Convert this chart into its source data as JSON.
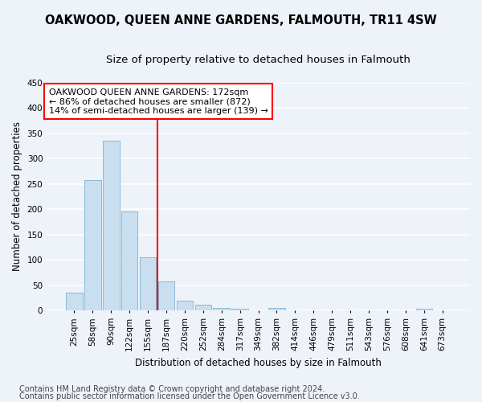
{
  "title": "OAKWOOD, QUEEN ANNE GARDENS, FALMOUTH, TR11 4SW",
  "subtitle": "Size of property relative to detached houses in Falmouth",
  "xlabel": "Distribution of detached houses by size in Falmouth",
  "ylabel": "Number of detached properties",
  "categories": [
    "25sqm",
    "58sqm",
    "90sqm",
    "122sqm",
    "155sqm",
    "187sqm",
    "220sqm",
    "252sqm",
    "284sqm",
    "317sqm",
    "349sqm",
    "382sqm",
    "414sqm",
    "446sqm",
    "479sqm",
    "511sqm",
    "543sqm",
    "576sqm",
    "608sqm",
    "641sqm",
    "673sqm"
  ],
  "values": [
    35,
    258,
    335,
    195,
    105,
    57,
    20,
    11,
    6,
    4,
    0,
    5,
    0,
    0,
    0,
    0,
    0,
    0,
    0,
    4,
    0
  ],
  "bar_color": "#c9dff0",
  "bar_edge_color": "#7ab3d4",
  "vline_pos": 4.5,
  "annotation_lines": [
    "OAKWOOD QUEEN ANNE GARDENS: 172sqm",
    "← 86% of detached houses are smaller (872)",
    "14% of semi-detached houses are larger (139) →"
  ],
  "ylim": [
    0,
    450
  ],
  "yticks": [
    0,
    50,
    100,
    150,
    200,
    250,
    300,
    350,
    400,
    450
  ],
  "footer_line1": "Contains HM Land Registry data © Crown copyright and database right 2024.",
  "footer_line2": "Contains public sector information licensed under the Open Government Licence v3.0.",
  "background_color": "#eef2f9",
  "grid_color": "#ffffff",
  "title_fontsize": 10.5,
  "subtitle_fontsize": 9.5,
  "axis_label_fontsize": 8.5,
  "tick_fontsize": 7.5,
  "footer_fontsize": 7,
  "annotation_fontsize": 8
}
